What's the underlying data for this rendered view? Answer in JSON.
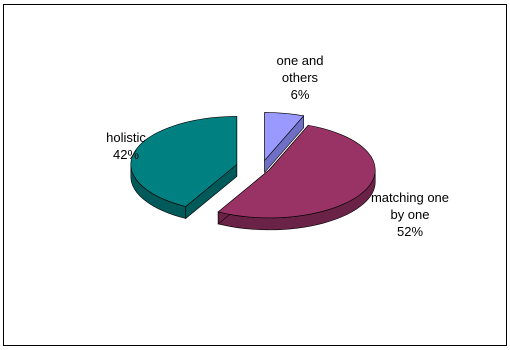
{
  "chart_data": {
    "type": "pie",
    "title": "",
    "slices": [
      {
        "label_lines": [
          "one and",
          "others"
        ],
        "percent_text": "6%",
        "value": 6,
        "color": "#9999FF",
        "side_color": "#6F6FC6"
      },
      {
        "label_lines": [
          "matching one",
          "by one"
        ],
        "percent_text": "52%",
        "value": 52,
        "color": "#993366",
        "side_color": "#6A2347"
      },
      {
        "label_lines": [
          "holistic"
        ],
        "percent_text": "42%",
        "value": 42,
        "color": "#008080",
        "side_color": "#005A5A"
      }
    ],
    "exploded": true,
    "three_d": true,
    "legend": "none"
  }
}
